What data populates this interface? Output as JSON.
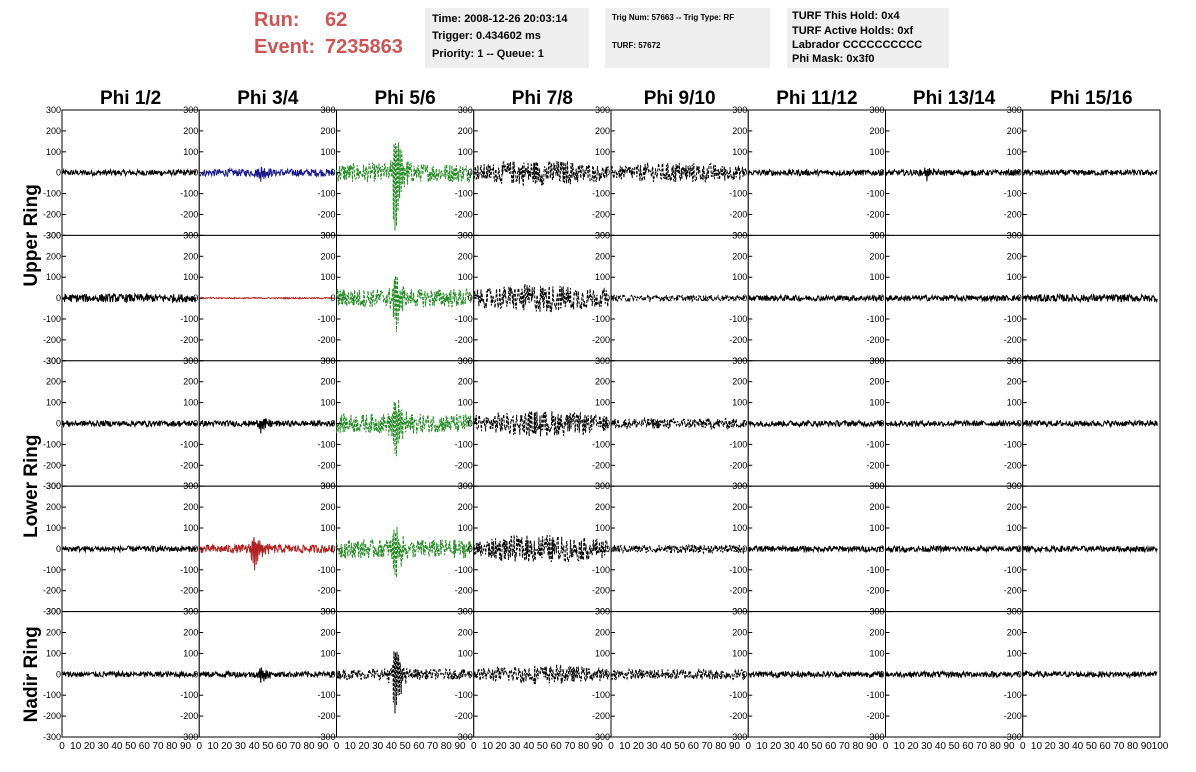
{
  "header": {
    "run_label": "Run:",
    "run_value": "62",
    "event_label": "Event:",
    "event_value": "7235863",
    "run_color": "#cc5555"
  },
  "info1": {
    "time": "Time: 2008-12-26 20:03:14",
    "trigger": "Trigger: 0.434602 ms",
    "priority": "Priority: 1 -- Queue: 1"
  },
  "info2": {
    "trig": "Trig Num: 57663 -- Trig Type: RF",
    "turf": "TURF: 57672"
  },
  "info3": {
    "hold": "TURF This Hold: 0x4",
    "active": "TURF Active Holds: 0xf",
    "labrador": "Labrador CCCCCCCCCC",
    "mask": "Phi Mask: 0x3f0"
  },
  "chart_data": {
    "type": "line",
    "columns": [
      "Phi 1/2",
      "Phi 3/4",
      "Phi 5/6",
      "Phi 7/8",
      "Phi 9/10",
      "Phi 11/12",
      "Phi 13/14",
      "Phi 15/16"
    ],
    "rings": [
      "Upper Ring",
      "Lower Ring",
      "Nadir Ring"
    ],
    "xlim": [
      0,
      100
    ],
    "ylim": [
      -300,
      300
    ],
    "x_ticks": [
      "0",
      "10",
      "20",
      "30",
      "40",
      "50",
      "60",
      "70",
      "80",
      "90",
      "100"
    ],
    "y_ticks": [
      "300",
      "200",
      "100",
      "0",
      "-100",
      "-200",
      "-300"
    ],
    "panel_rows": 5,
    "colors": {
      "normal": "#000000",
      "blue": "#1a1a8c",
      "red": "#b22222",
      "green": "#228b22"
    },
    "traces": [
      [
        {
          "amp": 14,
          "color": "normal",
          "dash": false
        },
        {
          "amp": 18,
          "color": "blue",
          "dash": false,
          "burst": 45,
          "burst_amp": 35
        },
        {
          "amp": 45,
          "color": "green",
          "dash": true,
          "burst": 43,
          "burst_amp": 300
        },
        {
          "amp": 55,
          "color": "normal",
          "dash": true,
          "envelope": true
        },
        {
          "amp": 45,
          "color": "normal",
          "dash": true,
          "envelope": true
        },
        {
          "amp": 14,
          "color": "normal",
          "dash": false
        },
        {
          "amp": 14,
          "color": "normal",
          "dash": false,
          "burst": 30,
          "burst_amp": 35
        },
        {
          "amp": 14,
          "color": "normal",
          "dash": false
        }
      ],
      [
        {
          "amp": 20,
          "color": "normal",
          "dash": false
        },
        {
          "amp": 3,
          "color": "red",
          "dash": false
        },
        {
          "amp": 45,
          "color": "green",
          "dash": true,
          "burst": 43,
          "burst_amp": 150
        },
        {
          "amp": 60,
          "color": "normal",
          "dash": true,
          "envelope": true
        },
        {
          "amp": 15,
          "color": "normal",
          "dash": true
        },
        {
          "amp": 14,
          "color": "normal",
          "dash": false
        },
        {
          "amp": 14,
          "color": "normal",
          "dash": false
        },
        {
          "amp": 18,
          "color": "normal",
          "dash": false
        }
      ],
      [
        {
          "amp": 14,
          "color": "normal",
          "dash": false
        },
        {
          "amp": 14,
          "color": "normal",
          "dash": false,
          "burst": 45,
          "burst_amp": 40
        },
        {
          "amp": 45,
          "color": "green",
          "dash": true,
          "burst": 43,
          "burst_amp": 200
        },
        {
          "amp": 55,
          "color": "normal",
          "dash": true,
          "envelope": true
        },
        {
          "amp": 25,
          "color": "normal",
          "dash": true
        },
        {
          "amp": 14,
          "color": "normal",
          "dash": false
        },
        {
          "amp": 14,
          "color": "normal",
          "dash": false
        },
        {
          "amp": 14,
          "color": "normal",
          "dash": false
        }
      ],
      [
        {
          "amp": 14,
          "color": "normal",
          "dash": false
        },
        {
          "amp": 20,
          "color": "red",
          "dash": false,
          "burst": 40,
          "burst_amp": 100
        },
        {
          "amp": 45,
          "color": "green",
          "dash": true,
          "burst": 43,
          "burst_amp": 130
        },
        {
          "amp": 60,
          "color": "normal",
          "dash": true,
          "envelope": true
        },
        {
          "amp": 20,
          "color": "normal",
          "dash": true
        },
        {
          "amp": 14,
          "color": "normal",
          "dash": false
        },
        {
          "amp": 14,
          "color": "normal",
          "dash": false
        },
        {
          "amp": 14,
          "color": "normal",
          "dash": false
        }
      ],
      [
        {
          "amp": 14,
          "color": "normal",
          "dash": false
        },
        {
          "amp": 14,
          "color": "normal",
          "dash": false,
          "burst": 45,
          "burst_amp": 40
        },
        {
          "amp": 25,
          "color": "normal",
          "dash": true,
          "burst": 43,
          "burst_amp": 200
        },
        {
          "amp": 40,
          "color": "normal",
          "dash": true,
          "envelope": true
        },
        {
          "amp": 25,
          "color": "normal",
          "dash": true
        },
        {
          "amp": 14,
          "color": "normal",
          "dash": false
        },
        {
          "amp": 14,
          "color": "normal",
          "dash": false
        },
        {
          "amp": 14,
          "color": "normal",
          "dash": false
        }
      ]
    ]
  }
}
